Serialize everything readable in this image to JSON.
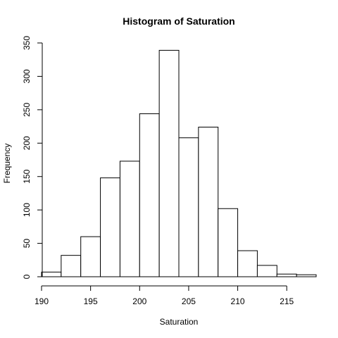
{
  "chart_data": {
    "type": "bar",
    "title": "Histogram of Saturation",
    "xlabel": "Saturation",
    "ylabel": "Frequency",
    "bin_edges": [
      190,
      192,
      194,
      196,
      198,
      200,
      202,
      204,
      206,
      208,
      210,
      212,
      214,
      216,
      218
    ],
    "values": [
      7,
      32,
      60,
      148,
      173,
      244,
      339,
      208,
      224,
      102,
      39,
      17,
      4,
      3
    ],
    "xlim": [
      190,
      218
    ],
    "ylim": [
      0,
      350
    ],
    "x_ticks": [
      190,
      195,
      200,
      205,
      210,
      215
    ],
    "y_ticks": [
      0,
      50,
      100,
      150,
      200,
      250,
      300,
      350
    ],
    "grid": false,
    "legend": "none",
    "bar_fill": "#ffffff",
    "bar_stroke": "#000000"
  }
}
